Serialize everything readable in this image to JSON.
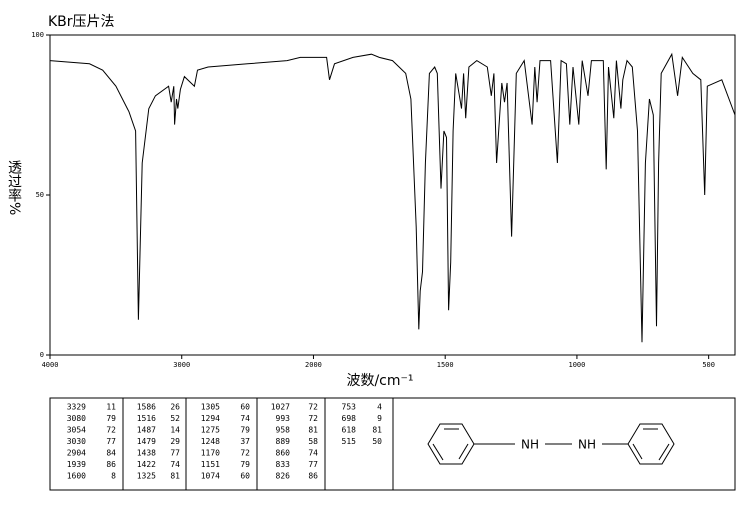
{
  "chart_data": {
    "type": "line",
    "title": "KBr压片法",
    "x_label": "波数/cm⁻¹",
    "y_label": "透过率%",
    "color": "#000000",
    "x_scale_change": 2000,
    "xlim": [
      4000,
      400
    ],
    "xticks": [
      4000,
      3000,
      2000,
      1500,
      1000,
      500
    ],
    "ylim": [
      0,
      100
    ],
    "yticks": [
      0,
      50,
      100
    ],
    "x": [
      4000,
      3700,
      3600,
      3500,
      3400,
      3350,
      3329,
      3300,
      3250,
      3200,
      3100,
      3080,
      3060,
      3054,
      3040,
      3030,
      3010,
      2980,
      2904,
      2880,
      2800,
      2500,
      2200,
      2100,
      2000,
      1950,
      1939,
      1920,
      1850,
      1780,
      1750,
      1700,
      1650,
      1630,
      1610,
      1600,
      1595,
      1586,
      1575,
      1560,
      1540,
      1530,
      1516,
      1505,
      1495,
      1487,
      1479,
      1470,
      1460,
      1438,
      1430,
      1422,
      1410,
      1380,
      1340,
      1325,
      1315,
      1305,
      1294,
      1285,
      1275,
      1265,
      1248,
      1230,
      1200,
      1170,
      1160,
      1151,
      1140,
      1100,
      1074,
      1060,
      1040,
      1027,
      1015,
      993,
      980,
      958,
      945,
      900,
      889,
      880,
      860,
      850,
      833,
      826,
      810,
      790,
      770,
      753,
      740,
      725,
      710,
      698,
      690,
      680,
      640,
      618,
      600,
      560,
      530,
      515,
      505,
      450,
      400
    ],
    "values": [
      92,
      91,
      89,
      84,
      76,
      70,
      11,
      60,
      77,
      81,
      84,
      79,
      84,
      72,
      80,
      77,
      83,
      87,
      84,
      89,
      90,
      91,
      92,
      93,
      93,
      93,
      86,
      91,
      93,
      94,
      93,
      92,
      88,
      80,
      40,
      8,
      20,
      26,
      60,
      88,
      90,
      88,
      52,
      70,
      68,
      14,
      29,
      70,
      88,
      77,
      88,
      74,
      90,
      92,
      90,
      81,
      88,
      60,
      74,
      85,
      79,
      85,
      37,
      88,
      92,
      72,
      90,
      79,
      92,
      92,
      60,
      92,
      91,
      72,
      90,
      72,
      92,
      81,
      92,
      92,
      58,
      90,
      74,
      92,
      77,
      86,
      92,
      90,
      70,
      4,
      60,
      80,
      75,
      9,
      60,
      88,
      94,
      81,
      93,
      88,
      86,
      50,
      84,
      86,
      75
    ]
  },
  "peak_table": {
    "columns": [
      [
        [
          3329,
          11
        ],
        [
          3080,
          79
        ],
        [
          3054,
          72
        ],
        [
          3030,
          77
        ],
        [
          2904,
          84
        ],
        [
          1939,
          86
        ],
        [
          1600,
          8
        ]
      ],
      [
        [
          1586,
          26
        ],
        [
          1516,
          52
        ],
        [
          1487,
          14
        ],
        [
          1479,
          29
        ],
        [
          1438,
          77
        ],
        [
          1422,
          74
        ],
        [
          1325,
          81
        ]
      ],
      [
        [
          1305,
          60
        ],
        [
          1294,
          74
        ],
        [
          1275,
          79
        ],
        [
          1248,
          37
        ],
        [
          1170,
          72
        ],
        [
          1151,
          79
        ],
        [
          1074,
          60
        ]
      ],
      [
        [
          1027,
          72
        ],
        [
          993,
          72
        ],
        [
          958,
          81
        ],
        [
          889,
          58
        ],
        [
          860,
          74
        ],
        [
          833,
          77
        ],
        [
          826,
          86
        ]
      ],
      [
        [
          753,
          4
        ],
        [
          698,
          9
        ],
        [
          618,
          81
        ],
        [
          515,
          50
        ]
      ]
    ]
  },
  "structure": {
    "labels": [
      "NH",
      "NH"
    ]
  }
}
